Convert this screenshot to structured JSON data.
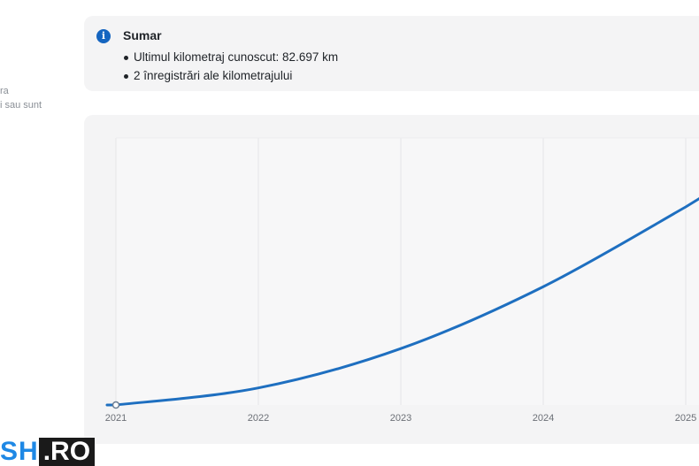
{
  "sidebar_text": {
    "line1": "ra",
    "line2": "i sau sunt"
  },
  "summary": {
    "icon": "info-icon",
    "title": "Sumar",
    "items": [
      "Ultimul kilometraj cunoscut: 82.697 km",
      "2 înregistrări ale kilometrajului"
    ]
  },
  "chart_data": {
    "type": "line",
    "x": [
      "2021",
      "2022",
      "2023",
      "2024",
      "2025"
    ],
    "xlabel": "",
    "ylabel": "",
    "grid": true,
    "series": [
      {
        "values": [
          0,
          6200,
          20500,
          43000,
          72000
        ],
        "color": "#1e6fc0"
      }
    ]
  },
  "logo": {
    "part1": "SH",
    "part2": ".RO",
    "colors": {
      "part1": "#1e88e5",
      "part2_bg": "#1a1a1a"
    }
  }
}
